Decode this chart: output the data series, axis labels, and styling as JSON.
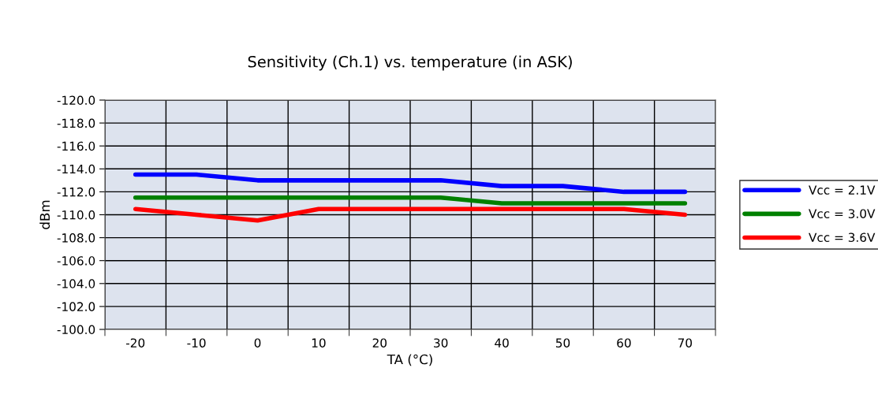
{
  "chart_data": {
    "type": "line",
    "title": "Sensitivity (Ch.1) vs. temperature (in ASK)",
    "xlabel": "TA (°C)",
    "ylabel": "dBm",
    "categories": [
      "-20",
      "-10",
      "0",
      "10",
      "20",
      "30",
      "40",
      "50",
      "60",
      "70"
    ],
    "series": [
      {
        "name": "Vcc = 2.1V",
        "color": "#0000ff",
        "values": [
          -113.5,
          -113.5,
          -113,
          -113,
          -113,
          -113,
          -112.5,
          -112.5,
          -112,
          -112
        ]
      },
      {
        "name": "Vcc = 3.0V",
        "color": "#008000",
        "values": [
          -111.5,
          -111.5,
          -111.5,
          -111.5,
          -111.5,
          -111.5,
          -111,
          -111,
          -111,
          -111
        ]
      },
      {
        "name": "Vcc = 3.6V",
        "color": "#ff0000",
        "values": [
          -110.5,
          -110,
          -109.5,
          -110.5,
          -110.5,
          -110.5,
          -110.5,
          -110.5,
          -110.5,
          -110
        ]
      }
    ],
    "ylim": [
      -100,
      -120
    ],
    "yticks": [
      {
        "value": -120,
        "label": "-120.0"
      },
      {
        "value": -118,
        "label": "-118.0"
      },
      {
        "value": -116,
        "label": "-116.0"
      },
      {
        "value": -114,
        "label": "-114.0"
      },
      {
        "value": -112,
        "label": "-112.0"
      },
      {
        "value": -110,
        "label": "-110.0"
      },
      {
        "value": -108,
        "label": "-108.0"
      },
      {
        "value": -106,
        "label": "-106.0"
      },
      {
        "value": -104,
        "label": "-104.0"
      },
      {
        "value": -102,
        "label": "-102.0"
      },
      {
        "value": -100,
        "label": "-100.0"
      }
    ],
    "grid": true,
    "legend": "right",
    "marker": "none",
    "line_style": "solid"
  }
}
